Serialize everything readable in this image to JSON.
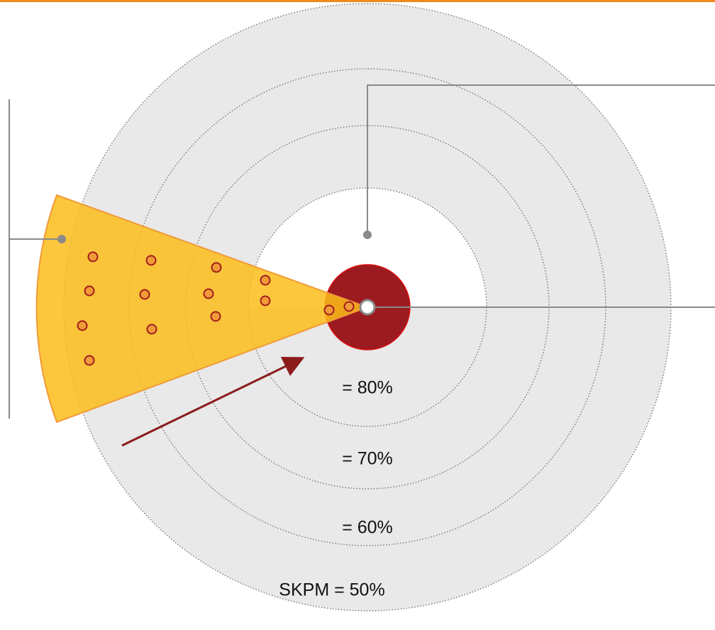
{
  "rings": {
    "labels": [
      "= 80%",
      "= 70%",
      "= 60%",
      "SKPM = 50%"
    ]
  }
}
